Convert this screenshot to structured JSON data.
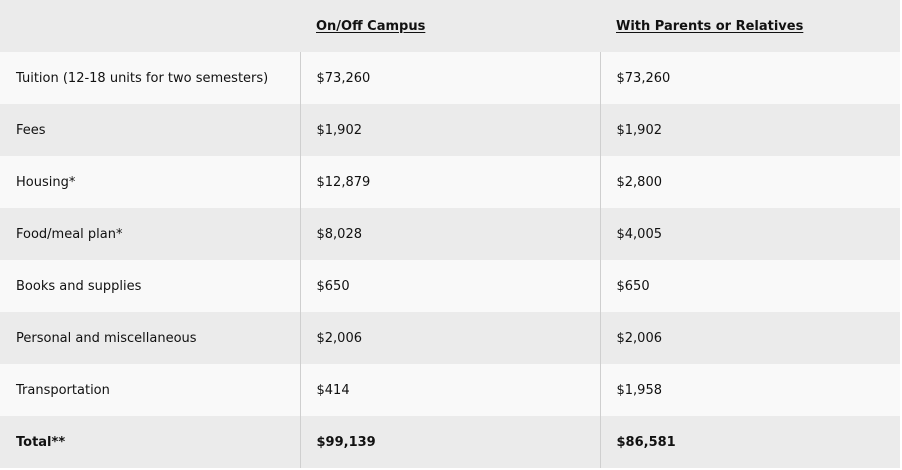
{
  "table": {
    "headers": [
      "",
      "On/Off Campus",
      "With Parents or Relatives"
    ],
    "rows": [
      {
        "label": "Tuition (12-18 units for two semesters)",
        "on_off_campus": "$73,260",
        "with_parents": "$73,260"
      },
      {
        "label": "Fees",
        "on_off_campus": "$1,902",
        "with_parents": "$1,902"
      },
      {
        "label": "Housing*",
        "on_off_campus": "$12,879",
        "with_parents": "$2,800"
      },
      {
        "label": "Food/meal plan*",
        "on_off_campus": "$8,028",
        "with_parents": "$4,005"
      },
      {
        "label": "Books and supplies",
        "on_off_campus": "$650",
        "with_parents": "$650"
      },
      {
        "label": "Personal and miscellaneous",
        "on_off_campus": "$2,006",
        "with_parents": "$2,006"
      },
      {
        "label": "Transportation",
        "on_off_campus": "$414",
        "with_parents": "$1,958"
      }
    ],
    "total": {
      "label": "Total**",
      "on_off_campus": "$99,139",
      "with_parents": "$86,581"
    }
  },
  "colors": {
    "shaded_row": "#ebebeb",
    "light_row": "#f9f9f9",
    "divider": "#cfcfcf",
    "text": "#111111"
  }
}
